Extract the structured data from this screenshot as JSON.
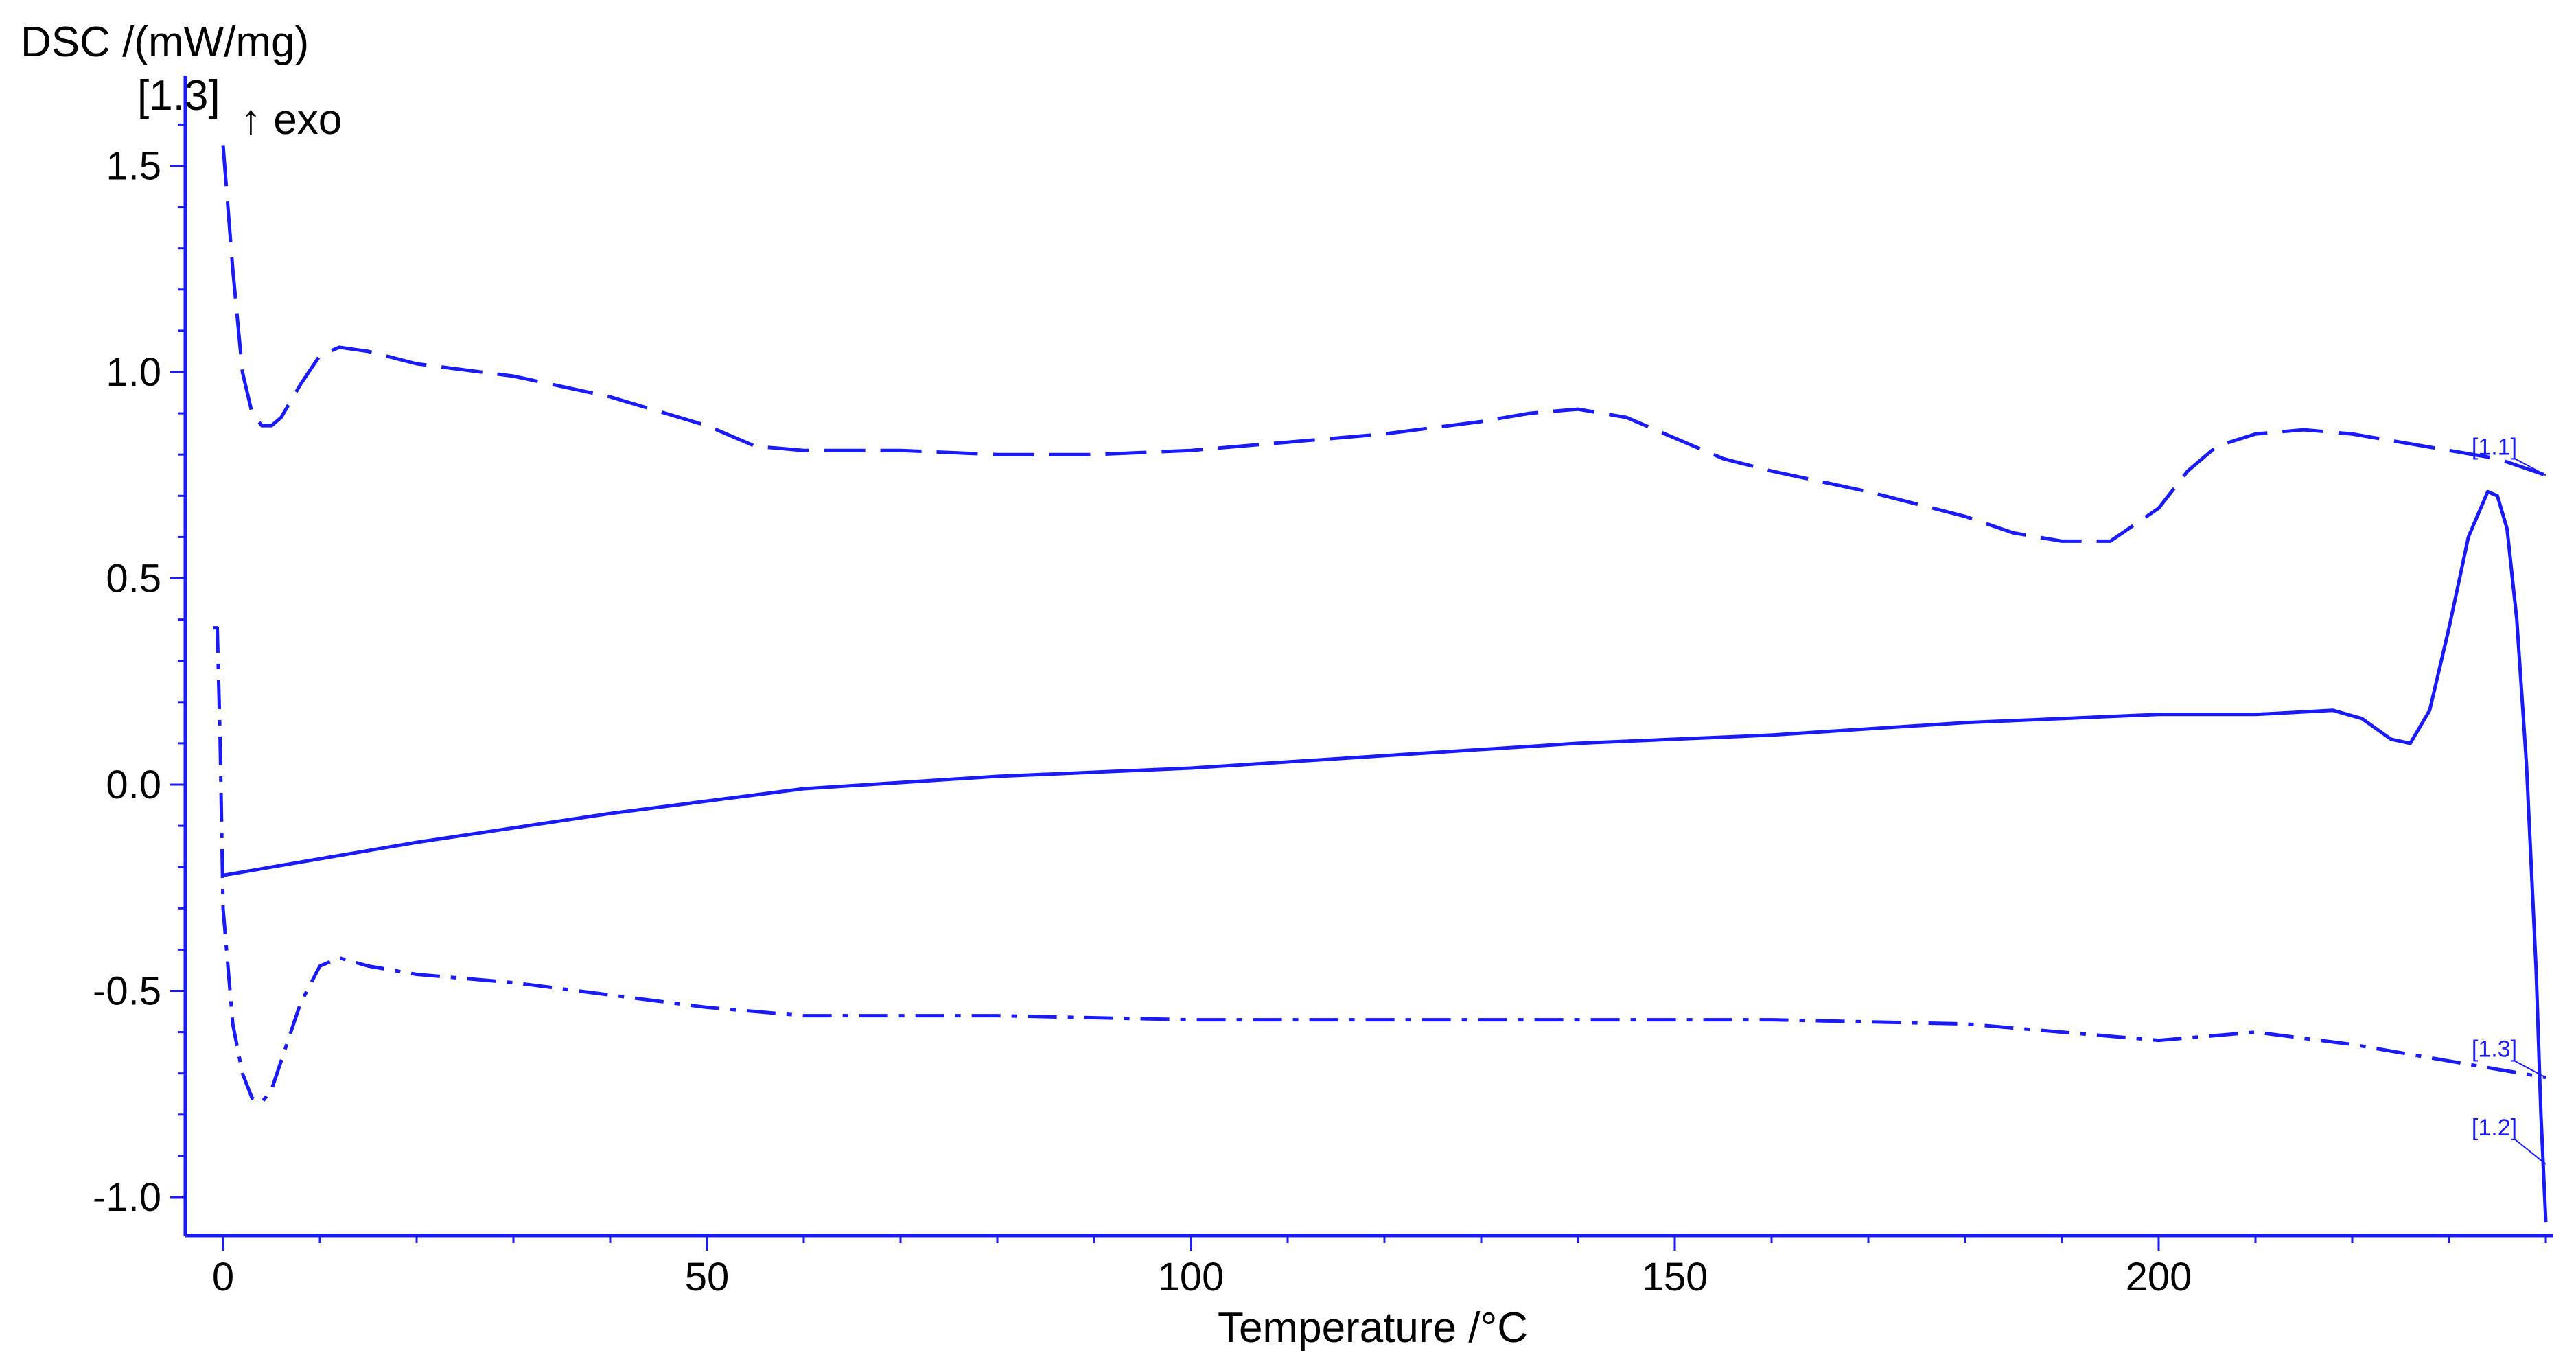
{
  "chart_data": {
    "type": "line",
    "title": "",
    "xlabel": "Temperature /°C",
    "ylabel": "DSC /(mW/mg)",
    "y_axis_segment_tag": "[1.3]",
    "exo_label": "↑ exo",
    "xlim": [
      -4,
      242
    ],
    "ylim": [
      -1.1,
      1.6
    ],
    "x_ticks": [
      0,
      50,
      100,
      150,
      200
    ],
    "x_tick_labels": [
      "0",
      "50",
      "100",
      "150",
      "200"
    ],
    "y_ticks": [
      -1.0,
      -0.5,
      0.0,
      0.5,
      1.0,
      1.5
    ],
    "y_tick_labels": [
      "-1.0",
      "-0.5",
      "0.0",
      "0.5",
      "1.0",
      "1.5"
    ],
    "grid": false,
    "line_color": "#1a1aff",
    "series": [
      {
        "name": "[1.1]",
        "style": "dashed",
        "x": [
          0,
          1,
          2,
          3,
          4,
          5,
          6,
          8,
          10,
          12,
          15,
          20,
          30,
          40,
          50,
          55,
          60,
          70,
          80,
          90,
          100,
          110,
          120,
          130,
          135,
          140,
          145,
          150,
          155,
          160,
          170,
          180,
          185,
          190,
          195,
          200,
          203,
          206,
          210,
          215,
          220,
          225,
          230,
          235,
          240
        ],
        "y": [
          1.55,
          1.25,
          1.0,
          0.9,
          0.87,
          0.87,
          0.89,
          0.97,
          1.04,
          1.06,
          1.05,
          1.02,
          0.99,
          0.94,
          0.87,
          0.82,
          0.81,
          0.81,
          0.8,
          0.8,
          0.81,
          0.83,
          0.85,
          0.88,
          0.9,
          0.91,
          0.89,
          0.84,
          0.79,
          0.76,
          0.71,
          0.65,
          0.61,
          0.59,
          0.59,
          0.67,
          0.76,
          0.82,
          0.85,
          0.86,
          0.85,
          0.83,
          0.81,
          0.79,
          0.75
        ]
      },
      {
        "name": "[1.2]",
        "style": "solid",
        "x": [
          0,
          20,
          40,
          50,
          60,
          80,
          100,
          120,
          140,
          160,
          180,
          200,
          210,
          218,
          221,
          224,
          226,
          228,
          230,
          232,
          234,
          235,
          236,
          237,
          238,
          239,
          239.5,
          240
        ],
        "y": [
          -0.22,
          -0.14,
          -0.07,
          -0.04,
          -0.01,
          0.02,
          0.04,
          0.07,
          0.1,
          0.12,
          0.15,
          0.17,
          0.17,
          0.18,
          0.16,
          0.11,
          0.1,
          0.18,
          0.38,
          0.6,
          0.71,
          0.7,
          0.62,
          0.4,
          0.05,
          -0.45,
          -0.8,
          -1.06
        ]
      },
      {
        "name": "[1.3]",
        "style": "dash-dot",
        "x": [
          -1,
          -0.6,
          -0.3,
          0,
          1,
          2,
          3,
          4,
          5,
          6,
          8,
          10,
          12,
          15,
          20,
          30,
          40,
          50,
          60,
          80,
          100,
          120,
          140,
          160,
          180,
          195,
          200,
          205,
          210,
          220,
          230,
          240
        ],
        "y": [
          0.38,
          0.38,
          0.1,
          -0.3,
          -0.58,
          -0.7,
          -0.76,
          -0.77,
          -0.74,
          -0.67,
          -0.53,
          -0.44,
          -0.42,
          -0.44,
          -0.46,
          -0.48,
          -0.51,
          -0.54,
          -0.56,
          -0.56,
          -0.57,
          -0.57,
          -0.57,
          -0.57,
          -0.58,
          -0.61,
          -0.62,
          -0.61,
          -0.6,
          -0.63,
          -0.67,
          -0.71
        ]
      }
    ]
  }
}
